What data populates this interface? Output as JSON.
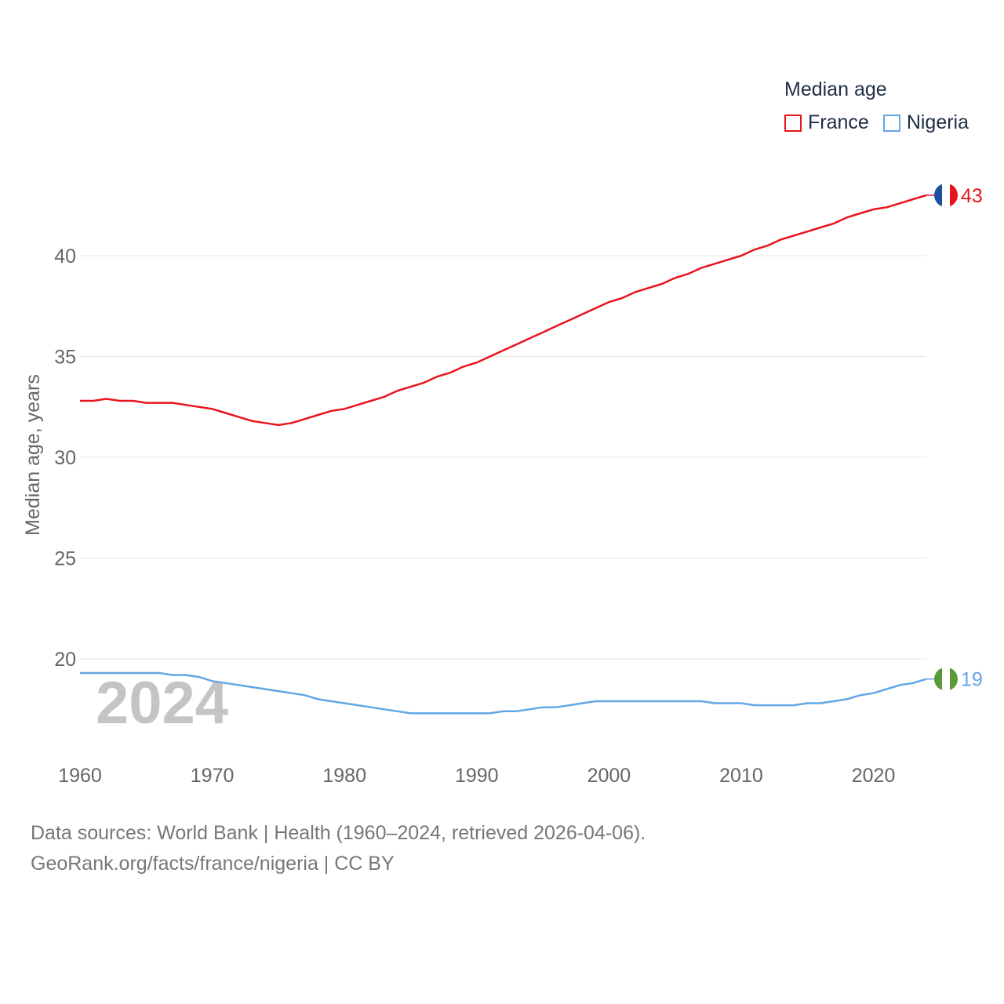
{
  "chart_data": {
    "type": "line",
    "title": "",
    "xlabel": "",
    "ylabel": "Median age, years",
    "xlim": [
      1960,
      2024
    ],
    "ylim": [
      15.5,
      44
    ],
    "yticks": [
      20,
      25,
      30,
      35,
      40
    ],
    "xticks": [
      1960,
      1970,
      1980,
      1990,
      2000,
      2010,
      2020
    ],
    "legend_title": "Median age",
    "legend_position": "top-right",
    "year_overlay": "2024",
    "series": [
      {
        "name": "France",
        "color": "#e8141c",
        "end_label": "43",
        "x": [
          1960,
          1961,
          1962,
          1963,
          1964,
          1965,
          1966,
          1967,
          1968,
          1969,
          1970,
          1971,
          1972,
          1973,
          1974,
          1975,
          1976,
          1977,
          1978,
          1979,
          1980,
          1981,
          1982,
          1983,
          1984,
          1985,
          1986,
          1987,
          1988,
          1989,
          1990,
          1991,
          1992,
          1993,
          1994,
          1995,
          1996,
          1997,
          1998,
          1999,
          2000,
          2001,
          2002,
          2003,
          2004,
          2005,
          2006,
          2007,
          2008,
          2009,
          2010,
          2011,
          2012,
          2013,
          2014,
          2015,
          2016,
          2017,
          2018,
          2019,
          2020,
          2021,
          2022,
          2023,
          2024
        ],
        "values": [
          32.8,
          32.8,
          32.9,
          32.8,
          32.8,
          32.7,
          32.7,
          32.7,
          32.6,
          32.5,
          32.4,
          32.2,
          32.0,
          31.8,
          31.7,
          31.6,
          31.7,
          31.9,
          32.1,
          32.3,
          32.4,
          32.6,
          32.8,
          33.0,
          33.3,
          33.5,
          33.7,
          34.0,
          34.2,
          34.5,
          34.7,
          35.0,
          35.3,
          35.6,
          35.9,
          36.2,
          36.5,
          36.8,
          37.1,
          37.4,
          37.7,
          37.9,
          38.2,
          38.4,
          38.6,
          38.9,
          39.1,
          39.4,
          39.6,
          39.8,
          40.0,
          40.3,
          40.5,
          40.8,
          41.0,
          41.2,
          41.4,
          41.6,
          41.9,
          42.1,
          42.3,
          42.4,
          42.6,
          42.8,
          43.0
        ]
      },
      {
        "name": "Nigeria",
        "color": "#63a6e6",
        "end_label": "19",
        "x": [
          1960,
          1961,
          1962,
          1963,
          1964,
          1965,
          1966,
          1967,
          1968,
          1969,
          1970,
          1971,
          1972,
          1973,
          1974,
          1975,
          1976,
          1977,
          1978,
          1979,
          1980,
          1981,
          1982,
          1983,
          1984,
          1985,
          1986,
          1987,
          1988,
          1989,
          1990,
          1991,
          1992,
          1993,
          1994,
          1995,
          1996,
          1997,
          1998,
          1999,
          2000,
          2001,
          2002,
          2003,
          2004,
          2005,
          2006,
          2007,
          2008,
          2009,
          2010,
          2011,
          2012,
          2013,
          2014,
          2015,
          2016,
          2017,
          2018,
          2019,
          2020,
          2021,
          2022,
          2023,
          2024
        ],
        "values": [
          19.3,
          19.3,
          19.3,
          19.3,
          19.3,
          19.3,
          19.3,
          19.2,
          19.2,
          19.1,
          18.9,
          18.8,
          18.7,
          18.6,
          18.5,
          18.4,
          18.3,
          18.2,
          18.0,
          17.9,
          17.8,
          17.7,
          17.6,
          17.5,
          17.4,
          17.3,
          17.3,
          17.3,
          17.3,
          17.3,
          17.3,
          17.3,
          17.4,
          17.4,
          17.5,
          17.6,
          17.6,
          17.7,
          17.8,
          17.9,
          17.9,
          17.9,
          17.9,
          17.9,
          17.9,
          17.9,
          17.9,
          17.9,
          17.8,
          17.8,
          17.8,
          17.7,
          17.7,
          17.7,
          17.7,
          17.8,
          17.8,
          17.9,
          18.0,
          18.2,
          18.3,
          18.5,
          18.7,
          18.8,
          19.0
        ]
      }
    ]
  },
  "source": {
    "line1": "Data sources: World Bank | Health (1960–2024, retrieved 2026-04-06).",
    "line2": "GeoRank.org/facts/france/nigeria | CC BY"
  }
}
